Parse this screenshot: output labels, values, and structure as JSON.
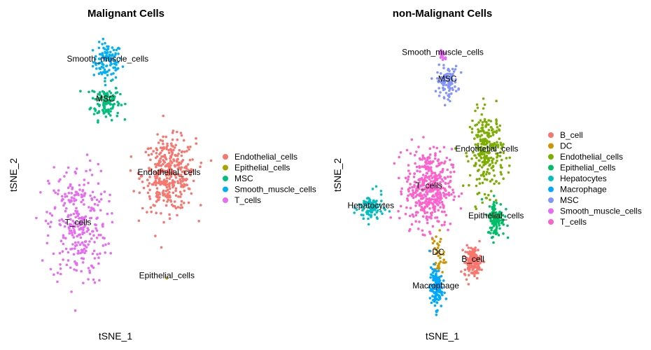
{
  "colors": {
    "Endothelial_cells": "#F8766D",
    "Epithelial_cells": "#A3A500",
    "MSC": "#00BF7D",
    "Smooth_muscle_cells": "#00B0F6",
    "T_cells": "#E76BF3",
    "B_cell": "#F8766D",
    "DC": "#CD9600",
    "nm_Endothelial_cells": "#7CAE00",
    "nm_Epithelial_cells": "#00BE67",
    "Hepatocytes": "#00BFC4",
    "Macrophage": "#00A9FF",
    "nm_MSC": "#8494FF",
    "nm_Smooth_muscle_cells": "#E76BF3",
    "nm_T_cells": "#FF61CC"
  },
  "chart_data": [
    {
      "type": "scatter",
      "title": "Malignant Cells",
      "xlabel": "tSNE_1",
      "ylabel": "tSNE_2",
      "legend": {
        "position": "right",
        "entries": [
          "Endothelial_cells",
          "Epithelial_cells",
          "MSC",
          "Smooth_muscle_cells",
          "T_cells"
        ]
      },
      "clusters": [
        {
          "label": "Smooth_muscle_cells",
          "color_key": "Smooth_muscle_cells",
          "x": -5,
          "y": 36,
          "n": 110
        },
        {
          "label": "MSC",
          "color_key": "MSC",
          "x": -6,
          "y": 24,
          "n": 120
        },
        {
          "label": "Endothelial_cells",
          "color_key": "Endothelial_cells",
          "x": 22,
          "y": 2,
          "n": 360
        },
        {
          "label": "T_cells",
          "color_key": "T_cells",
          "x": -18,
          "y": -13,
          "n": 300
        },
        {
          "label": "Epithelial_cells",
          "color_key": "Epithelial_cells",
          "x": 21,
          "y": -29,
          "n": 1
        }
      ]
    },
    {
      "type": "scatter",
      "title": "non-Malignant Cells",
      "xlabel": "tSNE_1",
      "ylabel": "tSNE_2",
      "legend": {
        "position": "right",
        "entries": [
          "B_cell",
          "DC",
          "Endothelial_cells",
          "Epithelial_cells",
          "Hepatocytes",
          "Macrophage",
          "MSC",
          "Smooth_muscle_cells",
          "T_cells"
        ]
      },
      "clusters": [
        {
          "label": "Smooth_muscle_cells",
          "color_key": "nm_Smooth_muscle_cells",
          "x": 0,
          "y": 38,
          "n": 25
        },
        {
          "label": "MSC",
          "color_key": "nm_MSC",
          "x": 2,
          "y": 30,
          "n": 100
        },
        {
          "label": "Endothelial_cells",
          "color_key": "nm_Endothelial_cells",
          "x": 19,
          "y": 9,
          "n": 260
        },
        {
          "label": "Hepatocytes",
          "color_key": "Hepatocytes",
          "x": -31,
          "y": -8,
          "n": 90
        },
        {
          "label": "T_cells",
          "color_key": "nm_T_cells",
          "x": -6,
          "y": -2,
          "n": 420
        },
        {
          "label": "Epithelial_cells",
          "color_key": "nm_Epithelial_cells",
          "x": 23,
          "y": -11,
          "n": 110
        },
        {
          "label": "B_cell",
          "color_key": "B_cell",
          "x": 13,
          "y": -24,
          "n": 150
        },
        {
          "label": "DC",
          "color_key": "DC",
          "x": -2,
          "y": -22,
          "n": 40
        },
        {
          "label": "Macrophage",
          "color_key": "Macrophage",
          "x": -3,
          "y": -32,
          "n": 130
        }
      ]
    }
  ]
}
